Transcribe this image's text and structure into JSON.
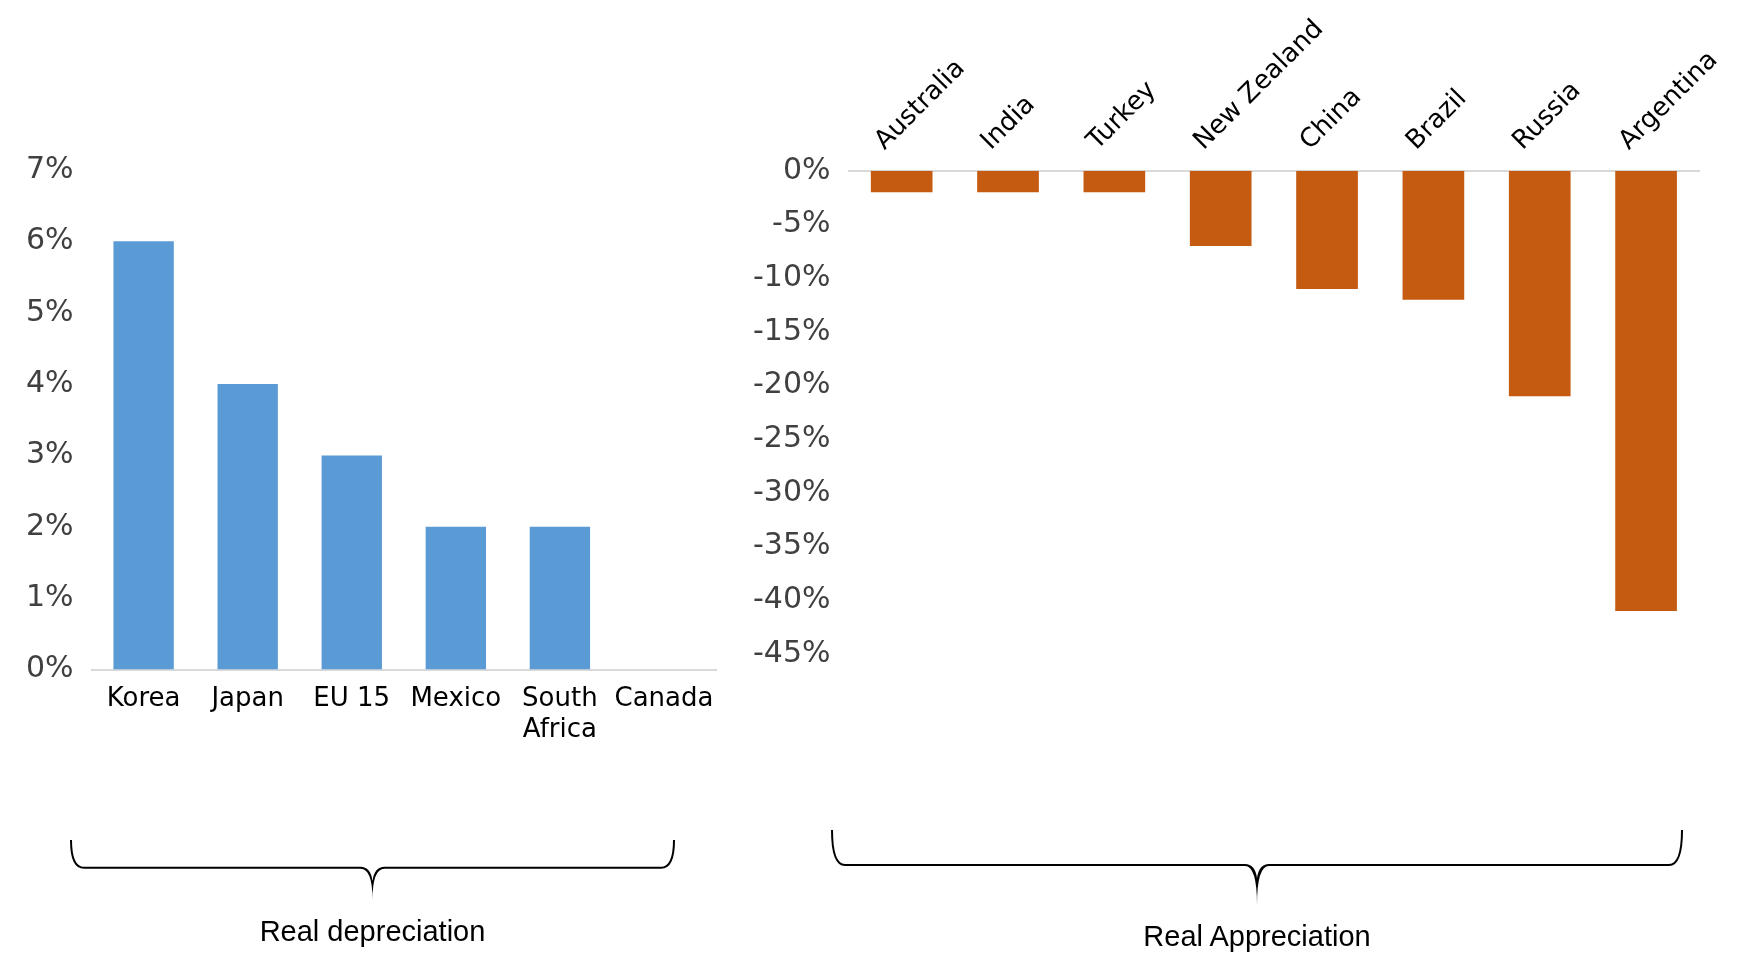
{
  "chart_data": [
    {
      "type": "bar",
      "categories": [
        "Korea",
        "Japan",
        "EU 15",
        "Mexico",
        "South Africa",
        "Canada"
      ],
      "values": [
        6,
        4,
        3,
        2,
        2,
        0
      ],
      "color": "#5b9bd5",
      "ylim": [
        0,
        7
      ],
      "yticks": [
        {
          "value": 0,
          "label": "0%"
        },
        {
          "value": 1,
          "label": "1%"
        },
        {
          "value": 2,
          "label": "2%"
        },
        {
          "value": 3,
          "label": "3%"
        },
        {
          "value": 4,
          "label": "4%"
        },
        {
          "value": 5,
          "label": "5%"
        },
        {
          "value": 6,
          "label": "6%"
        },
        {
          "value": 7,
          "label": "7%"
        }
      ],
      "grid": false,
      "legend": false,
      "annotations": [
        "Real depreciation"
      ]
    },
    {
      "type": "bar",
      "categories": [
        "Australia",
        "India",
        "Turkey",
        "New Zealand",
        "China",
        "Brazil",
        "Russia",
        "Argentina"
      ],
      "values": [
        -2,
        -2,
        -2,
        -7,
        -11,
        -12,
        -21,
        -41
      ],
      "color": "#c55a11",
      "ylim": [
        -45,
        0
      ],
      "yticks": [
        {
          "value": 0,
          "label": "0%"
        },
        {
          "value": -5,
          "label": "-5%"
        },
        {
          "value": -10,
          "label": "-10%"
        },
        {
          "value": -15,
          "label": "-15%"
        },
        {
          "value": -20,
          "label": "-20%"
        },
        {
          "value": -25,
          "label": "-25%"
        },
        {
          "value": -30,
          "label": "-30%"
        },
        {
          "value": -35,
          "label": "-35%"
        },
        {
          "value": -40,
          "label": "-40%"
        },
        {
          "value": -45,
          "label": "-45%"
        }
      ],
      "grid": false,
      "legend": false,
      "annotations": [
        "Real Appreciation"
      ]
    }
  ]
}
